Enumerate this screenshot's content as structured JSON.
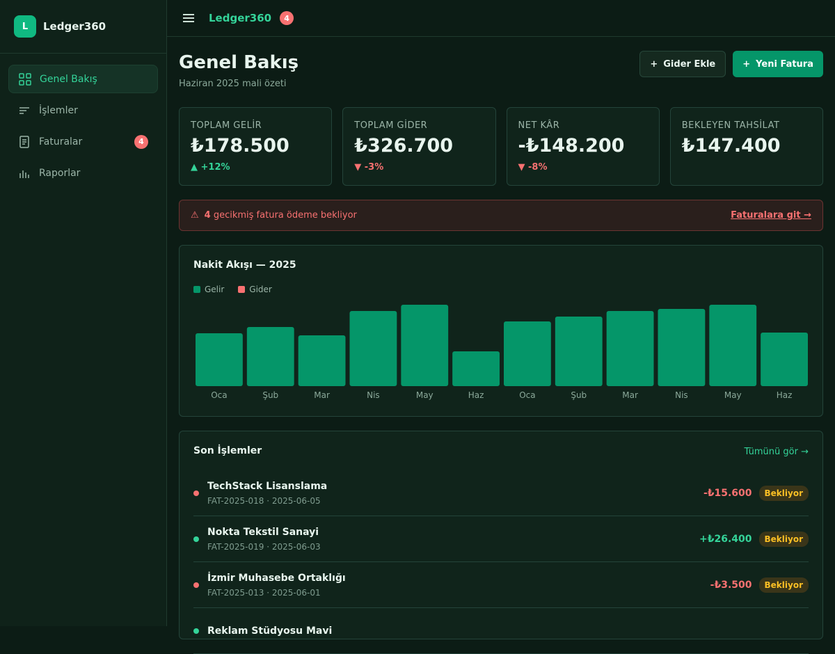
{
  "sidebar": {
    "logo": "L",
    "brand": "Ledger360",
    "nav": [
      {
        "label": "Genel Bakış"
      },
      {
        "label": "İşlemler"
      },
      {
        "label": "Faturalar",
        "badge": 4
      },
      {
        "label": "Raporlar"
      }
    ]
  },
  "topbar": {
    "title": "Ledger360",
    "badge": 4
  },
  "header": {
    "title": "Genel Bakış",
    "subtitle": "Haziran 2025 mali özeti",
    "buttons": [
      "Gider Ekle",
      "Yeni Fatura"
    ]
  },
  "kpis": [
    {
      "label": "TOPLAM GELİR",
      "value": "₺178.500",
      "change": "+12%"
    },
    {
      "label": "TOPLAM GİDER",
      "value": "₺326.700",
      "change": "-3%"
    },
    {
      "label": "NET KÂR",
      "value": "-₺148.200",
      "change": "-8%"
    },
    {
      "label": "BEKLEYEN TAHSİLAT",
      "value": "₺147.400"
    }
  ],
  "alert": {
    "count": 4,
    "text": "gecikmiş fatura ödeme bekliyor",
    "link": "Faturalara git →"
  },
  "chart_data": {
    "type": "bar",
    "title": "Nakit Akışı — 2025",
    "categories": [
      "Oca",
      "Şub",
      "Mar",
      "Nis",
      "May",
      "Haz",
      "Oca",
      "Şub",
      "Mar",
      "Nis",
      "May",
      "Haz"
    ],
    "series": [
      {
        "name": "Gelir",
        "color": "#059669",
        "values": [
          76,
          85,
          73,
          108,
          117,
          50,
          93,
          100,
          108,
          111,
          117,
          77
        ]
      },
      {
        "name": "Gider",
        "color": "#f87171",
        "values": [
          null,
          null,
          null,
          null,
          null,
          null,
          null,
          null,
          null,
          null,
          null,
          null
        ]
      }
    ]
  },
  "transactions": {
    "title": "Son İşlemler",
    "link": "Tümünü gör →",
    "rows": [
      {
        "name": "TechStack Lisanslama",
        "meta": "FAT-2025-018 · 2025-06-05",
        "amount": "-₺15.600",
        "status": "Bekliyor"
      },
      {
        "name": "Nokta Tekstil Sanayi",
        "meta": "FAT-2025-019 · 2025-06-03",
        "amount": "+₺26.400",
        "status": "Bekliyor"
      },
      {
        "name": "İzmir Muhasebe Ortaklığı",
        "meta": "FAT-2025-013 · 2025-06-01",
        "amount": "-₺3.500",
        "status": "Bekliyor"
      },
      {
        "name": "Reklam Stüdyosu Mavi"
      }
    ]
  }
}
